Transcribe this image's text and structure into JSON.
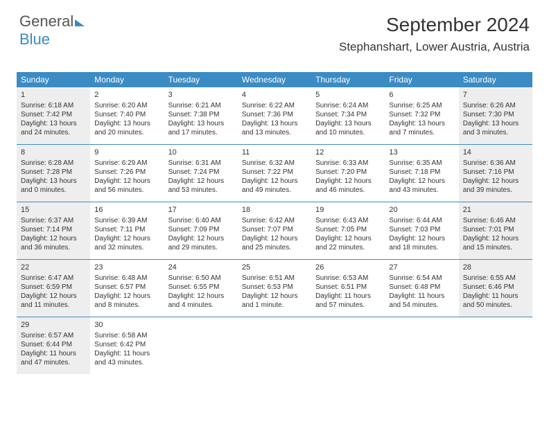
{
  "logo": {
    "part1": "General",
    "part2": "Blue"
  },
  "header": {
    "month": "September 2024",
    "location": "Stephanshart, Lower Austria, Austria"
  },
  "colors": {
    "accent": "#3b8bc4",
    "shade": "#eeeeee",
    "text": "#333333",
    "bg": "#ffffff"
  },
  "dayNames": [
    "Sunday",
    "Monday",
    "Tuesday",
    "Wednesday",
    "Thursday",
    "Friday",
    "Saturday"
  ],
  "weeks": [
    [
      {
        "n": "1",
        "sr": "Sunrise: 6:18 AM",
        "ss": "Sunset: 7:42 PM",
        "dl": "Daylight: 13 hours and 24 minutes.",
        "shade": true
      },
      {
        "n": "2",
        "sr": "Sunrise: 6:20 AM",
        "ss": "Sunset: 7:40 PM",
        "dl": "Daylight: 13 hours and 20 minutes.",
        "shade": false
      },
      {
        "n": "3",
        "sr": "Sunrise: 6:21 AM",
        "ss": "Sunset: 7:38 PM",
        "dl": "Daylight: 13 hours and 17 minutes.",
        "shade": false
      },
      {
        "n": "4",
        "sr": "Sunrise: 6:22 AM",
        "ss": "Sunset: 7:36 PM",
        "dl": "Daylight: 13 hours and 13 minutes.",
        "shade": false
      },
      {
        "n": "5",
        "sr": "Sunrise: 6:24 AM",
        "ss": "Sunset: 7:34 PM",
        "dl": "Daylight: 13 hours and 10 minutes.",
        "shade": false
      },
      {
        "n": "6",
        "sr": "Sunrise: 6:25 AM",
        "ss": "Sunset: 7:32 PM",
        "dl": "Daylight: 13 hours and 7 minutes.",
        "shade": false
      },
      {
        "n": "7",
        "sr": "Sunrise: 6:26 AM",
        "ss": "Sunset: 7:30 PM",
        "dl": "Daylight: 13 hours and 3 minutes.",
        "shade": true
      }
    ],
    [
      {
        "n": "8",
        "sr": "Sunrise: 6:28 AM",
        "ss": "Sunset: 7:28 PM",
        "dl": "Daylight: 13 hours and 0 minutes.",
        "shade": true
      },
      {
        "n": "9",
        "sr": "Sunrise: 6:29 AM",
        "ss": "Sunset: 7:26 PM",
        "dl": "Daylight: 12 hours and 56 minutes.",
        "shade": false
      },
      {
        "n": "10",
        "sr": "Sunrise: 6:31 AM",
        "ss": "Sunset: 7:24 PM",
        "dl": "Daylight: 12 hours and 53 minutes.",
        "shade": false
      },
      {
        "n": "11",
        "sr": "Sunrise: 6:32 AM",
        "ss": "Sunset: 7:22 PM",
        "dl": "Daylight: 12 hours and 49 minutes.",
        "shade": false
      },
      {
        "n": "12",
        "sr": "Sunrise: 6:33 AM",
        "ss": "Sunset: 7:20 PM",
        "dl": "Daylight: 12 hours and 46 minutes.",
        "shade": false
      },
      {
        "n": "13",
        "sr": "Sunrise: 6:35 AM",
        "ss": "Sunset: 7:18 PM",
        "dl": "Daylight: 12 hours and 43 minutes.",
        "shade": false
      },
      {
        "n": "14",
        "sr": "Sunrise: 6:36 AM",
        "ss": "Sunset: 7:16 PM",
        "dl": "Daylight: 12 hours and 39 minutes.",
        "shade": true
      }
    ],
    [
      {
        "n": "15",
        "sr": "Sunrise: 6:37 AM",
        "ss": "Sunset: 7:14 PM",
        "dl": "Daylight: 12 hours and 36 minutes.",
        "shade": true
      },
      {
        "n": "16",
        "sr": "Sunrise: 6:39 AM",
        "ss": "Sunset: 7:11 PM",
        "dl": "Daylight: 12 hours and 32 minutes.",
        "shade": false
      },
      {
        "n": "17",
        "sr": "Sunrise: 6:40 AM",
        "ss": "Sunset: 7:09 PM",
        "dl": "Daylight: 12 hours and 29 minutes.",
        "shade": false
      },
      {
        "n": "18",
        "sr": "Sunrise: 6:42 AM",
        "ss": "Sunset: 7:07 PM",
        "dl": "Daylight: 12 hours and 25 minutes.",
        "shade": false
      },
      {
        "n": "19",
        "sr": "Sunrise: 6:43 AM",
        "ss": "Sunset: 7:05 PM",
        "dl": "Daylight: 12 hours and 22 minutes.",
        "shade": false
      },
      {
        "n": "20",
        "sr": "Sunrise: 6:44 AM",
        "ss": "Sunset: 7:03 PM",
        "dl": "Daylight: 12 hours and 18 minutes.",
        "shade": false
      },
      {
        "n": "21",
        "sr": "Sunrise: 6:46 AM",
        "ss": "Sunset: 7:01 PM",
        "dl": "Daylight: 12 hours and 15 minutes.",
        "shade": true
      }
    ],
    [
      {
        "n": "22",
        "sr": "Sunrise: 6:47 AM",
        "ss": "Sunset: 6:59 PM",
        "dl": "Daylight: 12 hours and 11 minutes.",
        "shade": true
      },
      {
        "n": "23",
        "sr": "Sunrise: 6:48 AM",
        "ss": "Sunset: 6:57 PM",
        "dl": "Daylight: 12 hours and 8 minutes.",
        "shade": false
      },
      {
        "n": "24",
        "sr": "Sunrise: 6:50 AM",
        "ss": "Sunset: 6:55 PM",
        "dl": "Daylight: 12 hours and 4 minutes.",
        "shade": false
      },
      {
        "n": "25",
        "sr": "Sunrise: 6:51 AM",
        "ss": "Sunset: 6:53 PM",
        "dl": "Daylight: 12 hours and 1 minute.",
        "shade": false
      },
      {
        "n": "26",
        "sr": "Sunrise: 6:53 AM",
        "ss": "Sunset: 6:51 PM",
        "dl": "Daylight: 11 hours and 57 minutes.",
        "shade": false
      },
      {
        "n": "27",
        "sr": "Sunrise: 6:54 AM",
        "ss": "Sunset: 6:48 PM",
        "dl": "Daylight: 11 hours and 54 minutes.",
        "shade": false
      },
      {
        "n": "28",
        "sr": "Sunrise: 6:55 AM",
        "ss": "Sunset: 6:46 PM",
        "dl": "Daylight: 11 hours and 50 minutes.",
        "shade": true
      }
    ],
    [
      {
        "n": "29",
        "sr": "Sunrise: 6:57 AM",
        "ss": "Sunset: 6:44 PM",
        "dl": "Daylight: 11 hours and 47 minutes.",
        "shade": true
      },
      {
        "n": "30",
        "sr": "Sunrise: 6:58 AM",
        "ss": "Sunset: 6:42 PM",
        "dl": "Daylight: 11 hours and 43 minutes.",
        "shade": false
      },
      {
        "empty": true
      },
      {
        "empty": true
      },
      {
        "empty": true
      },
      {
        "empty": true
      },
      {
        "empty": true
      }
    ]
  ]
}
